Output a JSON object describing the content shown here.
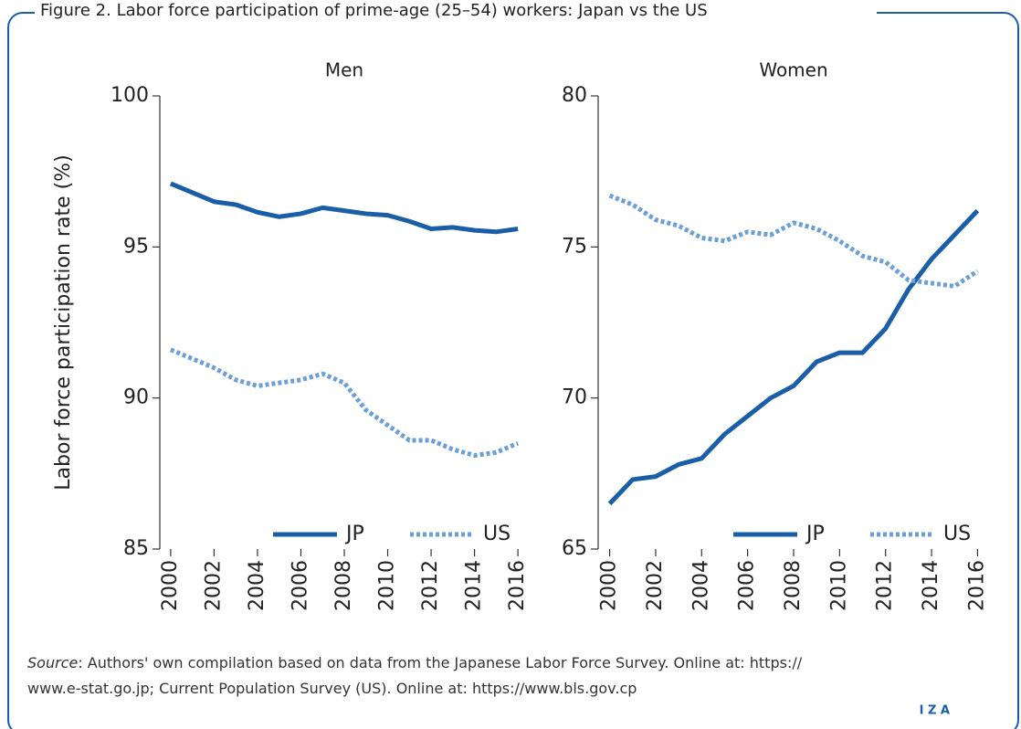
{
  "figure_title": "Figure 2. Labor force participation of prime-age (25–54) workers: Japan vs the US",
  "source_label": "Source",
  "source_lines": [
    ": Authors' own compilation based on data from the Japanese Labor Force Survey. Online at: https://",
    "www.e-stat.go.jp; Current Population Survey (US). Online at: https://www.bls.gov.cp"
  ],
  "logo": "I Z A",
  "chart_data": [
    {
      "type": "line",
      "title": "Men",
      "ylabel": "Labor force participation rate (%)",
      "x": [
        2000,
        2001,
        2002,
        2003,
        2004,
        2005,
        2006,
        2007,
        2008,
        2009,
        2010,
        2011,
        2012,
        2013,
        2014,
        2015,
        2016
      ],
      "xlim": [
        1999.5,
        2016.5
      ],
      "xticks": [
        2000,
        2002,
        2004,
        2006,
        2008,
        2010,
        2012,
        2014,
        2016
      ],
      "ylim": [
        85,
        100
      ],
      "yticks": [
        85,
        90,
        95,
        100
      ],
      "legend": "lower right",
      "series": [
        {
          "name": "JP",
          "color": "#1a5ea8",
          "style": "solid",
          "values": [
            97.1,
            96.8,
            96.5,
            96.4,
            96.15,
            96.0,
            96.1,
            96.3,
            96.2,
            96.1,
            96.05,
            95.85,
            95.6,
            95.65,
            95.55,
            95.5,
            95.6
          ]
        },
        {
          "name": "US",
          "color": "#6b9fd6",
          "style": "dotted",
          "values": [
            91.6,
            91.3,
            91.0,
            90.6,
            90.4,
            90.5,
            90.6,
            90.8,
            90.5,
            89.6,
            89.1,
            88.6,
            88.6,
            88.3,
            88.1,
            88.2,
            88.5
          ]
        }
      ]
    },
    {
      "type": "line",
      "title": "Women",
      "x": [
        2000,
        2001,
        2002,
        2003,
        2004,
        2005,
        2006,
        2007,
        2008,
        2009,
        2010,
        2011,
        2012,
        2013,
        2014,
        2015,
        2016
      ],
      "xlim": [
        1999.5,
        2016.5
      ],
      "xticks": [
        2000,
        2002,
        2004,
        2006,
        2008,
        2010,
        2012,
        2014,
        2016
      ],
      "ylim": [
        65,
        80
      ],
      "yticks": [
        65,
        70,
        75,
        80
      ],
      "legend": "lower right",
      "series": [
        {
          "name": "JP",
          "color": "#1a5ea8",
          "style": "solid",
          "values": [
            66.5,
            67.3,
            67.4,
            67.8,
            68.0,
            68.8,
            69.4,
            70.0,
            70.4,
            71.2,
            71.5,
            71.5,
            72.3,
            73.6,
            74.6,
            75.4,
            76.2
          ]
        },
        {
          "name": "US",
          "color": "#6b9fd6",
          "style": "dotted",
          "values": [
            76.7,
            76.4,
            75.9,
            75.7,
            75.3,
            75.2,
            75.5,
            75.4,
            75.8,
            75.6,
            75.2,
            74.7,
            74.5,
            73.9,
            73.8,
            73.7,
            74.2
          ]
        }
      ]
    }
  ]
}
